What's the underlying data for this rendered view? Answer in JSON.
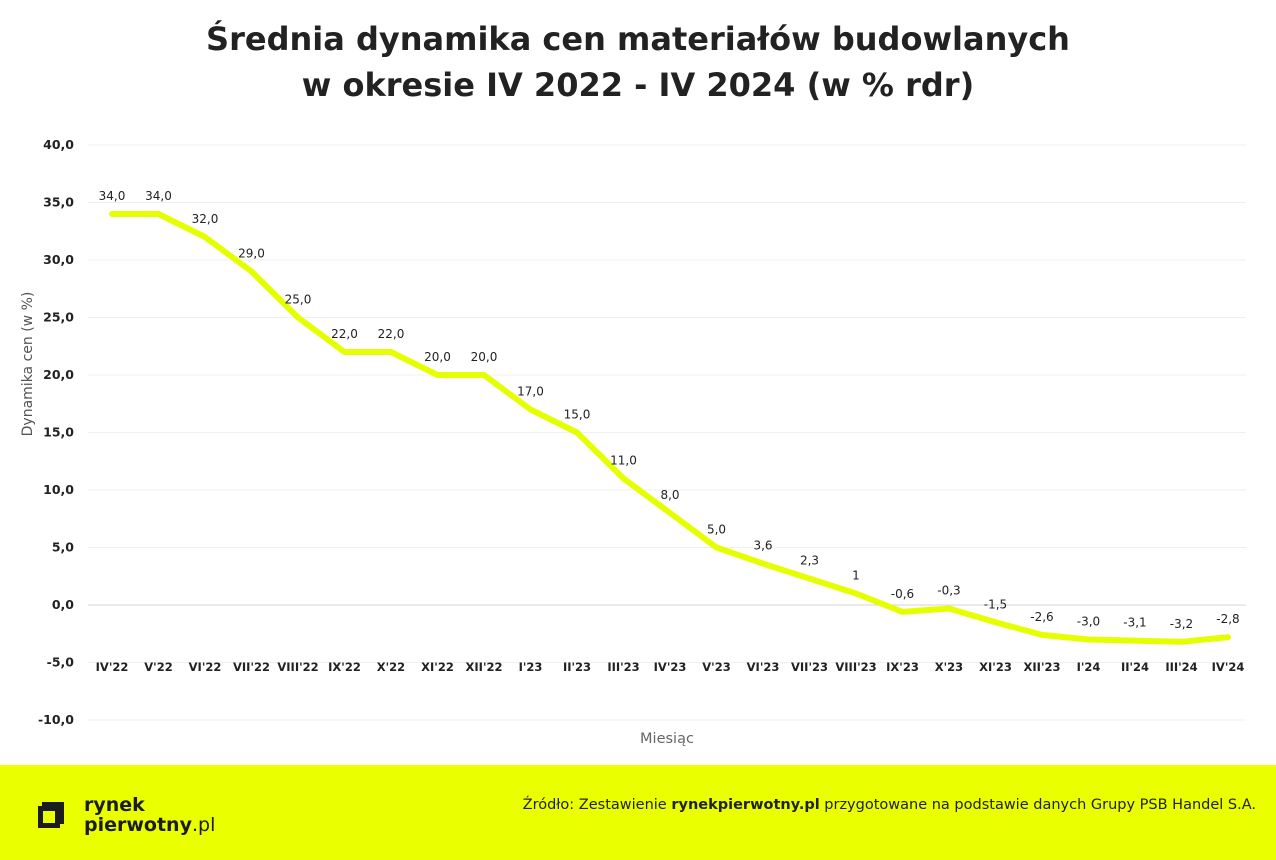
{
  "title_line1": "Średnia dynamika cen materiałów budowlanych",
  "title_line2": "w okresie IV 2022 - IV 2024 (w % rdr)",
  "chart_data": {
    "type": "line",
    "title": "Średnia dynamika cen materiałów budowlanych w okresie IV 2022 - IV 2024 (w % rdr)",
    "xlabel": "Miesiąc",
    "ylabel": "Dynamika cen (w %)",
    "ylim": [
      -10,
      40
    ],
    "yticks": [
      "-10,0",
      "-5,0",
      "0,0",
      "5,0",
      "10,0",
      "15,0",
      "20,0",
      "25,0",
      "30,0",
      "35,0",
      "40,0"
    ],
    "ytick_values": [
      -10,
      -5,
      0,
      5,
      10,
      15,
      20,
      25,
      30,
      35,
      40
    ],
    "grid": true,
    "line_color": "#e6ff00",
    "categories": [
      "IV'22",
      "V'22",
      "VI'22",
      "VII'22",
      "VIII'22",
      "IX'22",
      "X'22",
      "XI'22",
      "XII'22",
      "I'23",
      "II'23",
      "III'23",
      "IV'23",
      "V'23",
      "VI'23",
      "VII'23",
      "VIII'23",
      "IX'23",
      "X'23",
      "XI'23",
      "XII'23",
      "I'24",
      "II'24",
      "III'24",
      "IV'24"
    ],
    "values": [
      34.0,
      34.0,
      32.0,
      29.0,
      25.0,
      22.0,
      22.0,
      20.0,
      20.0,
      17.0,
      15.0,
      11.0,
      8.0,
      5.0,
      3.6,
      2.3,
      1.0,
      -0.6,
      -0.3,
      -1.5,
      -2.6,
      -3.0,
      -3.1,
      -3.2,
      -2.8
    ],
    "data_labels": [
      "34,0",
      "34,0",
      "32,0",
      "29,0",
      "25,0",
      "22,0",
      "22,0",
      "20,0",
      "20,0",
      "17,0",
      "15,0",
      "11,0",
      "8,0",
      "5,0",
      "3,6",
      "2,3",
      "1",
      "-0,6",
      "-0,3",
      "-1,5",
      "-2,6",
      "-3,0",
      "-3,1",
      "-3,2",
      "-2,8"
    ]
  },
  "footer": {
    "logo_line1": "rynek",
    "logo_line2": "pierwotny",
    "logo_suffix": ".pl",
    "source_prefix": "Źródło: Zestawienie ",
    "source_bold": "rynekpierwotny.pl",
    "source_suffix": " przygotowane na podstawie danych Grupy PSB Handel S.A.",
    "background_color": "#eaff00"
  }
}
